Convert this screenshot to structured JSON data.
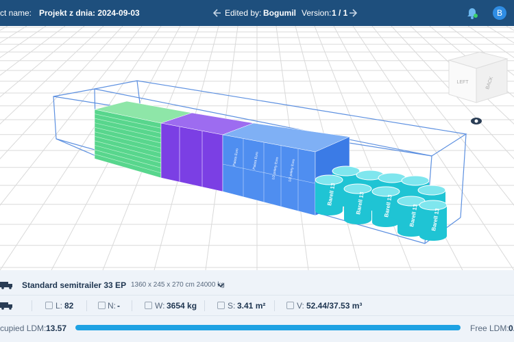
{
  "header": {
    "project_label": "ct name:",
    "project_name": "Projekt z dnia: 2024-09-03",
    "edited_label": "Edited by:",
    "editor": "Bogumil",
    "version_label": "Version:",
    "version": "1 / 1",
    "avatar": "B"
  },
  "viewport": {
    "cube_faces": [
      "LEFT",
      "BACK"
    ],
    "box_labels": [
      "Paleta Euro",
      "1/2 palety Euro"
    ],
    "barrel_label": "Barell 13"
  },
  "vehicle": {
    "name": "Standard semitrailer 33 EP",
    "specs": "1360 x 245 x 270 cm 24000 kg"
  },
  "stats": [
    {
      "label": "L:",
      "value": "82"
    },
    {
      "label": "N:",
      "value": "-"
    },
    {
      "label": "W:",
      "value": "3654 kg"
    },
    {
      "label": "S:",
      "value": "3.41 m²"
    },
    {
      "label": "V:",
      "value": "52.44/37.53 m³"
    }
  ],
  "ldm": {
    "occupied_label": "cupied LDM:",
    "occupied": "13.57",
    "free_label": "Free LDM:",
    "free": "0."
  }
}
